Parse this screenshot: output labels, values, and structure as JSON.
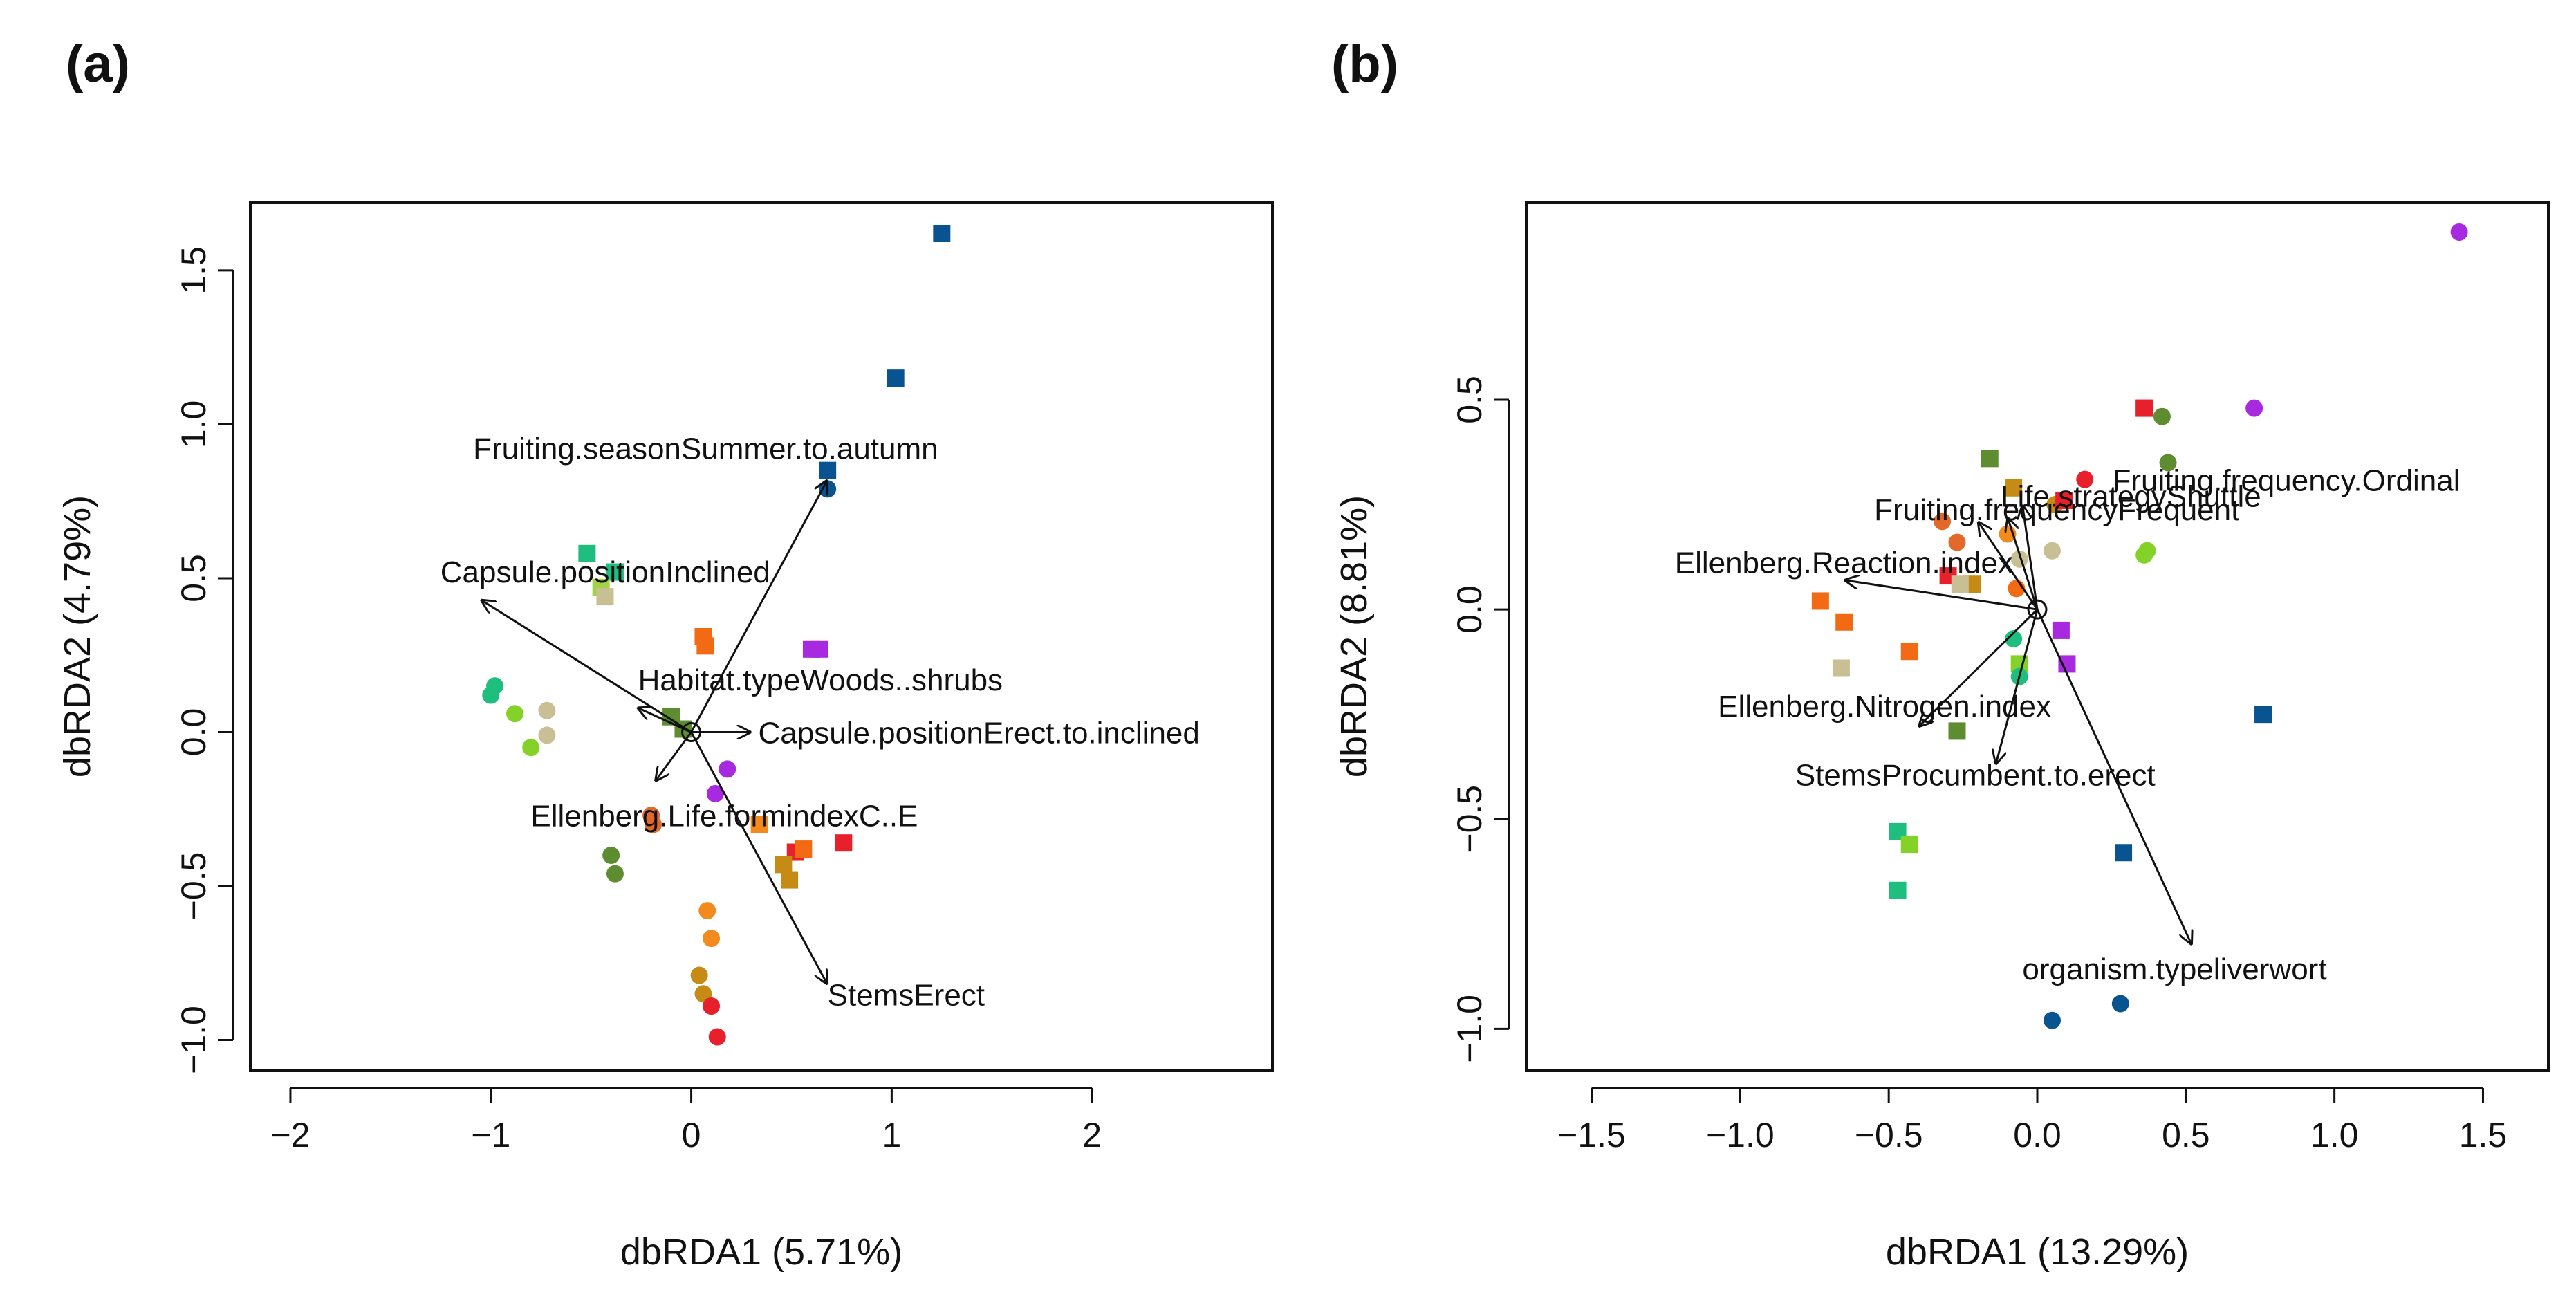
{
  "figure": {
    "panels": [
      "(a)",
      "(b)"
    ]
  },
  "chart_data": [
    {
      "type": "scatter",
      "panel_label": "(a)",
      "title": "",
      "xlabel": "dbRDA1 (5.71%)",
      "ylabel": "dbRDA2 (4.79%)",
      "xlim": [
        -2.2,
        2.9
      ],
      "ylim": [
        -1.1,
        1.72
      ],
      "xticks": [
        -2,
        -1,
        0,
        1,
        2
      ],
      "xtick_labels": [
        "−2",
        "−1",
        "0",
        "1",
        "2"
      ],
      "yticks": [
        -1.0,
        -0.5,
        0.0,
        0.5,
        1.0,
        1.5
      ],
      "ytick_labels": [
        "−1.0",
        "−0.5",
        "0.0",
        "0.5",
        "1.0",
        "1.5"
      ],
      "grid": false,
      "legend": "none",
      "vectors": [
        {
          "label": "Fruiting.seasonSummer.to.autumn",
          "x": 0.68,
          "y": 0.82
        },
        {
          "label": "Capsule.positionInclined",
          "x": -1.05,
          "y": 0.43
        },
        {
          "label": "Habitat.typeWoods..shrubs",
          "x": -0.27,
          "y": 0.08
        },
        {
          "label": "Capsule.positionErect.to.inclined",
          "x": 0.3,
          "y": 0.0
        },
        {
          "label": "Ellenberg.Life.formindexC..E",
          "x": -0.18,
          "y": -0.16
        },
        {
          "label": "StemsErect",
          "x": 0.68,
          "y": -0.82
        }
      ],
      "points": [
        {
          "x": 1.25,
          "y": 1.62,
          "shape": "square",
          "color": "#0a5391"
        },
        {
          "x": 1.02,
          "y": 1.15,
          "shape": "square",
          "color": "#0a5391"
        },
        {
          "x": 0.68,
          "y": 0.85,
          "shape": "square",
          "color": "#0a5391"
        },
        {
          "x": 0.68,
          "y": 0.79,
          "shape": "circle",
          "color": "#0a5391"
        },
        {
          "x": -0.52,
          "y": 0.58,
          "shape": "square",
          "color": "#1dbe7e"
        },
        {
          "x": -0.38,
          "y": 0.52,
          "shape": "square",
          "color": "#1dbe7e"
        },
        {
          "x": -0.45,
          "y": 0.47,
          "shape": "square",
          "color": "#a2d246"
        },
        {
          "x": -0.43,
          "y": 0.44,
          "shape": "square",
          "color": "#c8c094"
        },
        {
          "x": 0.06,
          "y": 0.31,
          "shape": "square",
          "color": "#f26b14"
        },
        {
          "x": 0.07,
          "y": 0.28,
          "shape": "square",
          "color": "#f26b14"
        },
        {
          "x": 0.6,
          "y": 0.27,
          "shape": "square",
          "color": "#a82ae0"
        },
        {
          "x": 0.64,
          "y": 0.27,
          "shape": "square",
          "color": "#a82ae0"
        },
        {
          "x": -0.98,
          "y": 0.15,
          "shape": "circle",
          "color": "#1dbe7e"
        },
        {
          "x": -1.0,
          "y": 0.12,
          "shape": "circle",
          "color": "#1dbe7e"
        },
        {
          "x": -0.88,
          "y": 0.06,
          "shape": "circle",
          "color": "#84d228"
        },
        {
          "x": -0.72,
          "y": 0.07,
          "shape": "circle",
          "color": "#c8c094"
        },
        {
          "x": -0.72,
          "y": -0.01,
          "shape": "circle",
          "color": "#c8c094"
        },
        {
          "x": -0.8,
          "y": -0.05,
          "shape": "circle",
          "color": "#84d228"
        },
        {
          "x": -0.1,
          "y": 0.05,
          "shape": "square",
          "color": "#5e8c31"
        },
        {
          "x": -0.04,
          "y": 0.01,
          "shape": "square",
          "color": "#5e8c31"
        },
        {
          "x": 0.12,
          "y": -0.2,
          "shape": "circle",
          "color": "#a82ae0"
        },
        {
          "x": 0.18,
          "y": -0.12,
          "shape": "circle",
          "color": "#a82ae0"
        },
        {
          "x": -0.2,
          "y": -0.27,
          "shape": "circle",
          "color": "#e3692a"
        },
        {
          "x": -0.19,
          "y": -0.3,
          "shape": "circle",
          "color": "#e3692a"
        },
        {
          "x": 0.34,
          "y": -0.3,
          "shape": "square",
          "color": "#f28a1e"
        },
        {
          "x": 0.52,
          "y": -0.39,
          "shape": "square",
          "color": "#e8202c"
        },
        {
          "x": 0.56,
          "y": -0.38,
          "shape": "square",
          "color": "#f26b14"
        },
        {
          "x": 0.76,
          "y": -0.36,
          "shape": "square",
          "color": "#e8202c"
        },
        {
          "x": 0.46,
          "y": -0.43,
          "shape": "square",
          "color": "#c68b14"
        },
        {
          "x": 0.49,
          "y": -0.48,
          "shape": "square",
          "color": "#c68b14"
        },
        {
          "x": -0.4,
          "y": -0.4,
          "shape": "circle",
          "color": "#5e8c31"
        },
        {
          "x": -0.38,
          "y": -0.46,
          "shape": "circle",
          "color": "#5e8c31"
        },
        {
          "x": 0.08,
          "y": -0.58,
          "shape": "circle",
          "color": "#f28a1e"
        },
        {
          "x": 0.1,
          "y": -0.67,
          "shape": "circle",
          "color": "#f28a1e"
        },
        {
          "x": 0.04,
          "y": -0.79,
          "shape": "circle",
          "color": "#c68b14"
        },
        {
          "x": 0.06,
          "y": -0.85,
          "shape": "circle",
          "color": "#c68b14"
        },
        {
          "x": 0.1,
          "y": -0.89,
          "shape": "circle",
          "color": "#e8202c"
        },
        {
          "x": 0.13,
          "y": -0.99,
          "shape": "circle",
          "color": "#e8202c"
        }
      ]
    },
    {
      "type": "scatter",
      "panel_label": "(b)",
      "title": "",
      "xlabel": "dbRDA1 (13.29%)",
      "ylabel": "dbRDA2 (8.81%)",
      "xlim": [
        -1.72,
        1.72
      ],
      "ylim": [
        -1.1,
        0.97
      ],
      "xticks": [
        -1.5,
        -1.0,
        -0.5,
        0.0,
        0.5,
        1.0,
        1.5
      ],
      "xtick_labels": [
        "−1.5",
        "−1.0",
        "−0.5",
        "0.0",
        "0.5",
        "1.0",
        "1.5"
      ],
      "yticks": [
        -1.0,
        -0.5,
        0.0,
        0.5
      ],
      "ytick_labels": [
        "−1.0",
        "−0.5",
        "0.0",
        "0.5"
      ],
      "grid": false,
      "legend": "none",
      "vectors": [
        {
          "label": "Fruiting.frequency.Ordinal",
          "x": -0.05,
          "y": 0.25
        },
        {
          "label": "Life.strategyShuttle",
          "x": -0.1,
          "y": 0.22
        },
        {
          "label": "Fruiting.frequencyFrequent",
          "x": -0.2,
          "y": 0.21
        },
        {
          "label": "Ellenberg.Reaction.index",
          "x": -0.65,
          "y": 0.07
        },
        {
          "label": "Ellenberg.Nitrogen.index",
          "x": -0.4,
          "y": -0.28
        },
        {
          "label": "StemsProcumbent.to.erect",
          "x": -0.14,
          "y": -0.37
        },
        {
          "label": "organism.typeliverwort",
          "x": 0.52,
          "y": -0.8
        }
      ],
      "points": [
        {
          "x": 1.42,
          "y": 0.9,
          "shape": "circle",
          "color": "#a82ae0"
        },
        {
          "x": 0.73,
          "y": 0.48,
          "shape": "circle",
          "color": "#a82ae0"
        },
        {
          "x": 0.36,
          "y": 0.48,
          "shape": "square",
          "color": "#e8202c"
        },
        {
          "x": 0.42,
          "y": 0.46,
          "shape": "circle",
          "color": "#5e8c31"
        },
        {
          "x": 0.44,
          "y": 0.35,
          "shape": "circle",
          "color": "#5e8c31"
        },
        {
          "x": -0.16,
          "y": 0.36,
          "shape": "square",
          "color": "#5e8c31"
        },
        {
          "x": 0.16,
          "y": 0.31,
          "shape": "circle",
          "color": "#e8202c"
        },
        {
          "x": -0.08,
          "y": 0.29,
          "shape": "square",
          "color": "#c68b14"
        },
        {
          "x": 0.06,
          "y": 0.25,
          "shape": "circle",
          "color": "#c68b14"
        },
        {
          "x": 0.09,
          "y": 0.26,
          "shape": "square",
          "color": "#e8202c"
        },
        {
          "x": -0.32,
          "y": 0.21,
          "shape": "circle",
          "color": "#e3692a"
        },
        {
          "x": -0.27,
          "y": 0.16,
          "shape": "circle",
          "color": "#e3692a"
        },
        {
          "x": -0.1,
          "y": 0.18,
          "shape": "circle",
          "color": "#f28a1e"
        },
        {
          "x": 0.05,
          "y": 0.14,
          "shape": "circle",
          "color": "#c8c094"
        },
        {
          "x": -0.06,
          "y": 0.12,
          "shape": "circle",
          "color": "#c8c094"
        },
        {
          "x": -0.3,
          "y": 0.08,
          "shape": "square",
          "color": "#e8202c"
        },
        {
          "x": -0.22,
          "y": 0.06,
          "shape": "square",
          "color": "#c68b14"
        },
        {
          "x": -0.26,
          "y": 0.06,
          "shape": "square",
          "color": "#c8c094"
        },
        {
          "x": -0.07,
          "y": 0.05,
          "shape": "circle",
          "color": "#f26b14"
        },
        {
          "x": 0.37,
          "y": 0.14,
          "shape": "circle",
          "color": "#84d228"
        },
        {
          "x": 0.36,
          "y": 0.13,
          "shape": "circle",
          "color": "#84d228"
        },
        {
          "x": -0.73,
          "y": 0.02,
          "shape": "square",
          "color": "#f26b14"
        },
        {
          "x": -0.65,
          "y": -0.03,
          "shape": "square",
          "color": "#f26b14"
        },
        {
          "x": -0.43,
          "y": -0.1,
          "shape": "square",
          "color": "#f26b14"
        },
        {
          "x": -0.66,
          "y": -0.14,
          "shape": "square",
          "color": "#c8c094"
        },
        {
          "x": 0.08,
          "y": -0.05,
          "shape": "square",
          "color": "#a82ae0"
        },
        {
          "x": -0.08,
          "y": -0.07,
          "shape": "circle",
          "color": "#1dbe7e"
        },
        {
          "x": 0.1,
          "y": -0.13,
          "shape": "square",
          "color": "#a82ae0"
        },
        {
          "x": -0.06,
          "y": -0.13,
          "shape": "square",
          "color": "#84d228"
        },
        {
          "x": -0.06,
          "y": -0.16,
          "shape": "circle",
          "color": "#1dbe7e"
        },
        {
          "x": 0.76,
          "y": -0.25,
          "shape": "square",
          "color": "#0a5391"
        },
        {
          "x": -0.27,
          "y": -0.29,
          "shape": "square",
          "color": "#5e8c31"
        },
        {
          "x": -0.47,
          "y": -0.53,
          "shape": "square",
          "color": "#1dbe7e"
        },
        {
          "x": -0.43,
          "y": -0.56,
          "shape": "square",
          "color": "#84d228"
        },
        {
          "x": -0.47,
          "y": -0.67,
          "shape": "square",
          "color": "#1dbe7e"
        },
        {
          "x": 0.29,
          "y": -0.58,
          "shape": "square",
          "color": "#0a5391"
        },
        {
          "x": 0.28,
          "y": -0.94,
          "shape": "circle",
          "color": "#0a5391"
        },
        {
          "x": 0.05,
          "y": -0.98,
          "shape": "circle",
          "color": "#0a5391"
        }
      ]
    }
  ]
}
